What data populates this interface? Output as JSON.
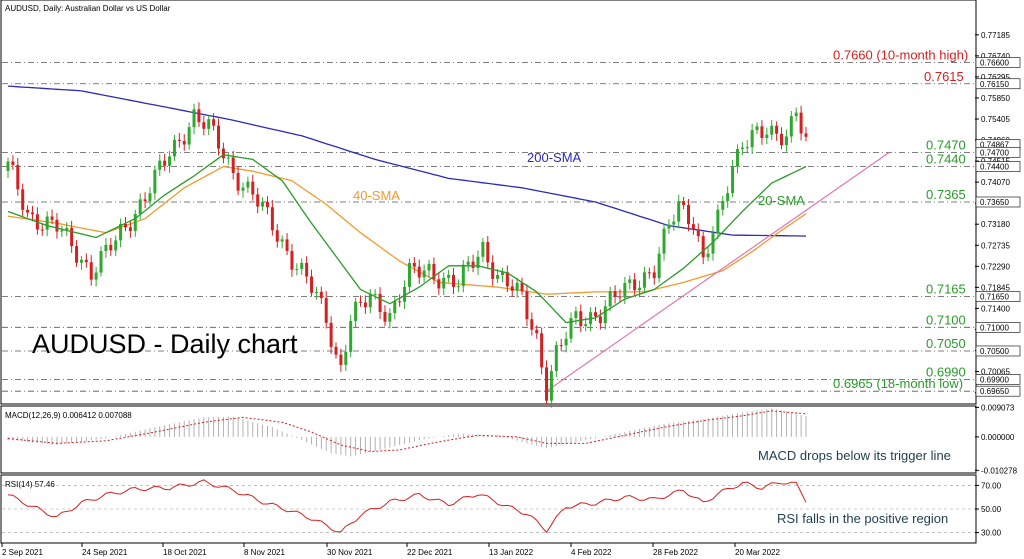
{
  "header": {
    "title": "AUDUSD, Daily:  Australian Dollar vs US Dollar"
  },
  "watermark": "AUDUSD - Daily chart",
  "colors": {
    "up": "#2fa82f",
    "down": "#d42020",
    "sma200": "#2b2bb8",
    "sma40": "#f29a2e",
    "sma20": "#2a9a2a",
    "trend": "#e077b0",
    "levelGreen": "#2a9a2a",
    "levelRed": "#d42020",
    "macdSignal": "#d42020",
    "rsi": "#d42020"
  },
  "chart_data": [
    {
      "type": "candlestick",
      "title": "AUDUSD, Daily:  Australian Dollar vs US Dollar",
      "ylim": [
        0.694,
        0.779
      ],
      "y_ticks": [
        "0.77185",
        "0.76740",
        "0.76295",
        "0.75850",
        "0.75405",
        "0.74960",
        "0.74515",
        "0.74070",
        "0.73625",
        "0.73180",
        "0.72735",
        "0.72290",
        "0.71845",
        "0.71400",
        "0.70955",
        "0.70510",
        "0.70065",
        "0.69620"
      ],
      "price_tags": [
        {
          "text": "0.76600",
          "value": 0.766
        },
        {
          "text": "0.76150",
          "value": 0.7615
        },
        {
          "text": "0.74867",
          "value": 0.74867
        },
        {
          "text": "0.74700",
          "value": 0.747
        },
        {
          "text": "0.74400",
          "value": 0.744
        },
        {
          "text": "0.73650",
          "value": 0.7365
        },
        {
          "text": "0.71650",
          "value": 0.7165
        },
        {
          "text": "0.71000",
          "value": 0.71
        },
        {
          "text": "0.70500",
          "value": 0.705
        },
        {
          "text": "0.69900",
          "value": 0.699
        },
        {
          "text": "0.69650",
          "value": 0.6965
        }
      ],
      "x_labels": [
        "2 Sep 2021",
        "24 Sep 2021",
        "18 Oct 2021",
        "8 Nov 2021",
        "30 Nov 2021",
        "22 Dec 2021",
        "13 Jan 2022",
        "4 Feb 2022",
        "28 Feb 2022",
        "20 Mar 2022"
      ],
      "levels": [
        {
          "value": 0.766,
          "label": "0.7660 (10-month high)",
          "color": "red"
        },
        {
          "value": 0.7615,
          "label": "0.7615",
          "color": "red"
        },
        {
          "value": 0.747,
          "label": "0.7470",
          "color": "green"
        },
        {
          "value": 0.744,
          "label": "0.7440",
          "color": "green"
        },
        {
          "value": 0.7365,
          "label": "0.7365",
          "color": "green"
        },
        {
          "value": 0.7165,
          "label": "0.7165",
          "color": "green"
        },
        {
          "value": 0.71,
          "label": "0.7100",
          "color": "green"
        },
        {
          "value": 0.705,
          "label": "0.7050",
          "color": "green"
        },
        {
          "value": 0.699,
          "label": "0.6990",
          "color": "green"
        },
        {
          "value": 0.6965,
          "label": "0.6965 (18-month low)",
          "color": "green"
        }
      ],
      "anchors": [
        [
          0,
          0.744
        ],
        [
          4,
          0.734
        ],
        [
          10,
          0.731
        ],
        [
          17,
          0.722
        ],
        [
          22,
          0.728
        ],
        [
          28,
          0.738
        ],
        [
          34,
          0.748
        ],
        [
          38,
          0.755
        ],
        [
          41,
          0.752
        ],
        [
          46,
          0.743
        ],
        [
          50,
          0.738
        ],
        [
          56,
          0.728
        ],
        [
          61,
          0.72
        ],
        [
          65,
          0.712
        ],
        [
          67,
          0.704
        ],
        [
          68,
          0.702
        ],
        [
          70,
          0.712
        ],
        [
          74,
          0.716
        ],
        [
          78,
          0.713
        ],
        [
          82,
          0.721
        ],
        [
          86,
          0.722
        ],
        [
          92,
          0.719
        ],
        [
          97,
          0.727
        ],
        [
          100,
          0.721
        ],
        [
          105,
          0.716
        ],
        [
          108,
          0.708
        ],
        [
          110,
          0.697
        ],
        [
          112,
          0.704
        ],
        [
          116,
          0.712
        ],
        [
          121,
          0.713
        ],
        [
          124,
          0.716
        ],
        [
          128,
          0.72
        ],
        [
          132,
          0.722
        ],
        [
          135,
          0.731
        ],
        [
          137,
          0.736
        ],
        [
          140,
          0.733
        ],
        [
          142,
          0.724
        ],
        [
          145,
          0.732
        ],
        [
          148,
          0.744
        ],
        [
          150,
          0.75
        ],
        [
          153,
          0.751
        ],
        [
          156,
          0.75
        ],
        [
          159,
          0.751
        ],
        [
          161,
          0.757
        ],
        [
          163,
          0.749
        ]
      ],
      "n_candles": 164,
      "series": [
        {
          "name": "200-SMA",
          "anchors": [
            [
              0,
              0.761
            ],
            [
              15,
              0.76
            ],
            [
              30,
              0.757
            ],
            [
              45,
              0.754
            ],
            [
              60,
              0.7505
            ],
            [
              75,
              0.7455
            ],
            [
              90,
              0.7415
            ],
            [
              105,
              0.7395
            ],
            [
              120,
              0.7365
            ],
            [
              135,
              0.7315
            ],
            [
              148,
              0.7295
            ],
            [
              163,
              0.7293
            ]
          ]
        },
        {
          "name": "40-SMA",
          "anchors": [
            [
              0,
              0.7335
            ],
            [
              10,
              0.732
            ],
            [
              20,
              0.73
            ],
            [
              28,
              0.733
            ],
            [
              36,
              0.7395
            ],
            [
              44,
              0.744
            ],
            [
              50,
              0.743
            ],
            [
              58,
              0.741
            ],
            [
              65,
              0.736
            ],
            [
              72,
              0.73
            ],
            [
              80,
              0.724
            ],
            [
              88,
              0.7195
            ],
            [
              100,
              0.7185
            ],
            [
              110,
              0.717
            ],
            [
              120,
              0.7175
            ],
            [
              130,
              0.7175
            ],
            [
              138,
              0.7195
            ],
            [
              146,
              0.722
            ],
            [
              152,
              0.726
            ],
            [
              158,
              0.7305
            ],
            [
              163,
              0.734
            ]
          ]
        },
        {
          "name": "20-SMA",
          "anchors": [
            [
              0,
              0.7345
            ],
            [
              8,
              0.7315
            ],
            [
              18,
              0.729
            ],
            [
              26,
              0.733
            ],
            [
              32,
              0.738
            ],
            [
              38,
              0.742
            ],
            [
              44,
              0.7465
            ],
            [
              50,
              0.7455
            ],
            [
              56,
              0.741
            ],
            [
              62,
              0.732
            ],
            [
              67,
              0.725
            ],
            [
              72,
              0.718
            ],
            [
              78,
              0.715
            ],
            [
              84,
              0.7185
            ],
            [
              90,
              0.723
            ],
            [
              96,
              0.723
            ],
            [
              102,
              0.7215
            ],
            [
              108,
              0.7175
            ],
            [
              114,
              0.711
            ],
            [
              120,
              0.712
            ],
            [
              126,
              0.716
            ],
            [
              132,
              0.718
            ],
            [
              138,
              0.7225
            ],
            [
              144,
              0.728
            ],
            [
              150,
              0.7345
            ],
            [
              156,
              0.7405
            ],
            [
              163,
              0.744
            ]
          ]
        }
      ],
      "trend_line": [
        [
          110,
          0.6965
        ],
        [
          180,
          0.747
        ]
      ],
      "annotations": {
        "sma200": "200-SMA",
        "sma40": "40-SMA",
        "sma20": "20-SMA"
      }
    },
    {
      "type": "macd",
      "title": "MACD(12,26,9) 0.006412 0.007088",
      "ylim": [
        -0.0108,
        0.0092
      ],
      "y_ticks": [
        "0.009073",
        "0.000000",
        "-0.010278"
      ],
      "histogram_anchors": [
        [
          0,
          -0.001
        ],
        [
          10,
          -0.0025
        ],
        [
          20,
          -0.0005
        ],
        [
          30,
          0.003
        ],
        [
          40,
          0.006
        ],
        [
          46,
          0.0062
        ],
        [
          54,
          0.003
        ],
        [
          60,
          -0.001
        ],
        [
          66,
          -0.005
        ],
        [
          70,
          -0.006
        ],
        [
          76,
          -0.004
        ],
        [
          84,
          -0.001
        ],
        [
          92,
          0.001
        ],
        [
          100,
          0.0005
        ],
        [
          106,
          -0.002
        ],
        [
          110,
          -0.0035
        ],
        [
          118,
          -0.001
        ],
        [
          126,
          0.0015
        ],
        [
          134,
          0.004
        ],
        [
          142,
          0.0055
        ],
        [
          150,
          0.0075
        ],
        [
          156,
          0.0088
        ],
        [
          163,
          0.0064
        ]
      ],
      "signal_anchors": [
        [
          0,
          -0.0005
        ],
        [
          10,
          -0.002
        ],
        [
          20,
          -0.0012
        ],
        [
          30,
          0.0015
        ],
        [
          40,
          0.0045
        ],
        [
          48,
          0.006
        ],
        [
          56,
          0.0045
        ],
        [
          62,
          0.0015
        ],
        [
          68,
          -0.0025
        ],
        [
          74,
          -0.0045
        ],
        [
          80,
          -0.004
        ],
        [
          88,
          -0.0015
        ],
        [
          96,
          0.0005
        ],
        [
          104,
          0.0
        ],
        [
          110,
          -0.002
        ],
        [
          118,
          -0.002
        ],
        [
          126,
          0.0005
        ],
        [
          134,
          0.003
        ],
        [
          142,
          0.005
        ],
        [
          150,
          0.0065
        ],
        [
          156,
          0.008
        ],
        [
          163,
          0.0071
        ]
      ],
      "annotation": "MACD drops below its trigger line"
    },
    {
      "type": "rsi",
      "title": "RSI(14) 57.46",
      "ylim": [
        22,
        78
      ],
      "y_ticks": [
        "70.00",
        "50.00",
        "30.00"
      ],
      "anchors": [
        [
          0,
          62
        ],
        [
          5,
          52
        ],
        [
          10,
          43
        ],
        [
          15,
          55
        ],
        [
          20,
          62
        ],
        [
          26,
          67
        ],
        [
          33,
          68
        ],
        [
          40,
          73
        ],
        [
          46,
          66
        ],
        [
          52,
          56
        ],
        [
          58,
          48
        ],
        [
          62,
          42
        ],
        [
          68,
          30
        ],
        [
          72,
          45
        ],
        [
          78,
          56
        ],
        [
          84,
          62
        ],
        [
          90,
          54
        ],
        [
          96,
          63
        ],
        [
          102,
          52
        ],
        [
          106,
          46
        ],
        [
          110,
          32
        ],
        [
          114,
          52
        ],
        [
          120,
          55
        ],
        [
          126,
          60
        ],
        [
          132,
          58
        ],
        [
          138,
          66
        ],
        [
          142,
          55
        ],
        [
          145,
          63
        ],
        [
          150,
          72
        ],
        [
          154,
          68
        ],
        [
          158,
          73
        ],
        [
          161,
          71
        ],
        [
          163,
          57.46
        ]
      ],
      "annotation": "RSI falls in the positive region"
    }
  ]
}
